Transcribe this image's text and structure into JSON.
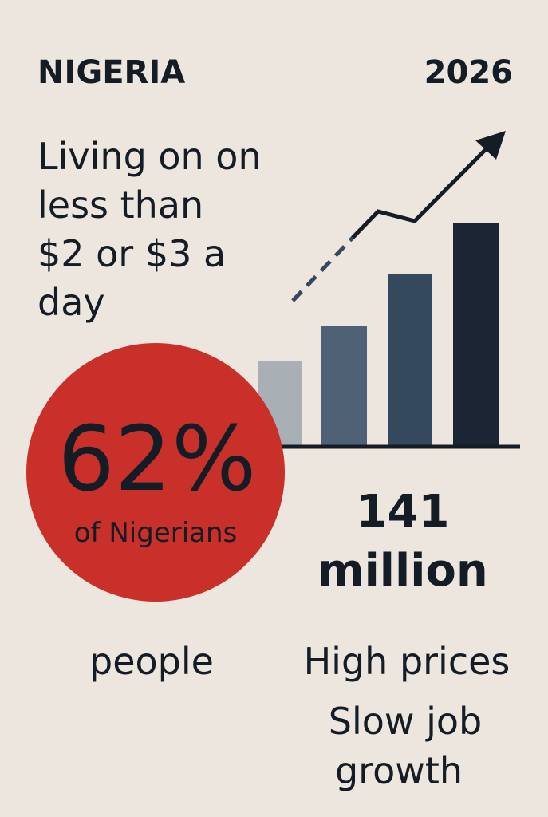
{
  "header": {
    "country": "NIGERIA",
    "year": "2026"
  },
  "headline": {
    "lines": [
      "Living on on",
      "less than",
      "$2 or $3 a",
      "day"
    ]
  },
  "circle": {
    "stat": "62%",
    "caption": "of Nigerians"
  },
  "count": {
    "lines": [
      "141",
      "million"
    ]
  },
  "people_label": "people",
  "causes": {
    "lines": [
      "High prices",
      "Slow job",
      "growth"
    ]
  }
}
